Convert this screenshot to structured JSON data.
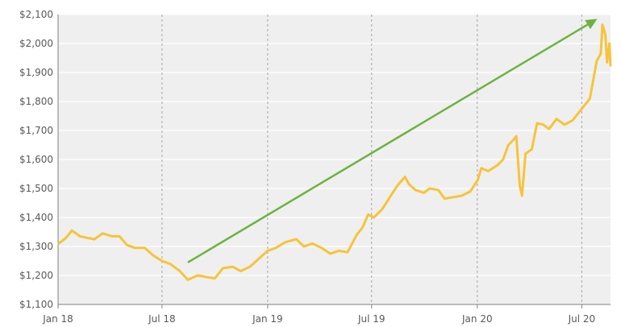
{
  "chart_data": {
    "type": "line",
    "title": "",
    "xlabel": "",
    "ylabel": "",
    "ylim": [
      1100,
      2100
    ],
    "y_ticks": [
      1100,
      1200,
      1300,
      1400,
      1500,
      1600,
      1700,
      1800,
      1900,
      2000,
      2100
    ],
    "y_tick_labels": [
      "$1,100",
      "$1,200",
      "$1,300",
      "$1,400",
      "$1,500",
      "$1,600",
      "$1,700",
      "$1,800",
      "$1,900",
      "$2,000",
      "$2,100"
    ],
    "x_ticks": [
      "2018-01-01",
      "2018-07-01",
      "2019-01-01",
      "2019-07-01",
      "2020-01-01",
      "2020-07-01"
    ],
    "x_tick_labels": [
      "Jan 18",
      "Jul 18",
      "Jan 19",
      "Jul 19",
      "Jan 20",
      "Jul 20"
    ],
    "x_range": [
      "2018-01-01",
      "2020-08-20"
    ],
    "grid": {
      "horizontal": true,
      "vertical_dashed": true
    },
    "plot_background": "#efefef",
    "line_color": "#f5c43a",
    "arrow_color": "#6db33f",
    "series": [
      {
        "x": [
          "2018-01-02",
          "2018-01-15",
          "2018-01-25",
          "2018-02-08",
          "2018-02-20",
          "2018-03-05",
          "2018-03-20",
          "2018-04-05",
          "2018-04-18",
          "2018-05-01",
          "2018-05-15",
          "2018-06-01",
          "2018-06-15",
          "2018-07-01",
          "2018-07-15",
          "2018-08-01",
          "2018-08-15",
          "2018-09-01",
          "2018-09-15",
          "2018-10-01",
          "2018-10-15",
          "2018-11-01",
          "2018-11-15",
          "2018-12-01",
          "2018-12-15",
          "2019-01-01",
          "2019-01-15",
          "2019-02-01",
          "2019-02-20",
          "2019-03-05",
          "2019-03-20",
          "2019-04-05",
          "2019-04-20",
          "2019-05-05",
          "2019-05-20",
          "2019-06-05",
          "2019-06-15",
          "2019-06-25",
          "2019-07-05",
          "2019-07-20",
          "2019-08-05",
          "2019-08-15",
          "2019-08-28",
          "2019-09-04",
          "2019-09-15",
          "2019-09-30",
          "2019-10-10",
          "2019-10-25",
          "2019-11-05",
          "2019-11-20",
          "2019-12-05",
          "2019-12-20",
          "2020-01-02",
          "2020-01-08",
          "2020-01-20",
          "2020-02-05",
          "2020-02-15",
          "2020-02-24",
          "2020-03-05",
          "2020-03-09",
          "2020-03-15",
          "2020-03-19",
          "2020-03-25",
          "2020-04-05",
          "2020-04-14",
          "2020-04-25",
          "2020-05-05",
          "2020-05-18",
          "2020-06-01",
          "2020-06-15",
          "2020-07-01",
          "2020-07-15",
          "2020-07-27",
          "2020-08-03",
          "2020-08-06",
          "2020-08-11",
          "2020-08-14",
          "2020-08-18",
          "2020-08-20"
        ],
        "values": [
          1310,
          1330,
          1355,
          1335,
          1330,
          1325,
          1345,
          1335,
          1335,
          1305,
          1295,
          1295,
          1270,
          1250,
          1240,
          1215,
          1185,
          1200,
          1195,
          1190,
          1225,
          1230,
          1215,
          1230,
          1255,
          1285,
          1295,
          1315,
          1325,
          1300,
          1310,
          1295,
          1275,
          1285,
          1280,
          1340,
          1365,
          1410,
          1400,
          1430,
          1480,
          1510,
          1540,
          1515,
          1495,
          1485,
          1500,
          1495,
          1465,
          1470,
          1475,
          1490,
          1530,
          1570,
          1560,
          1580,
          1600,
          1650,
          1670,
          1680,
          1510,
          1475,
          1620,
          1635,
          1725,
          1720,
          1705,
          1740,
          1720,
          1735,
          1775,
          1810,
          1940,
          1965,
          2065,
          2030,
          1935,
          2000,
          1925
        ]
      }
    ],
    "annotations": [
      {
        "type": "arrow",
        "from": {
          "x": "2018-08-15",
          "y": 1245
        },
        "to": {
          "x": "2020-07-28",
          "y": 2085
        }
      }
    ]
  }
}
